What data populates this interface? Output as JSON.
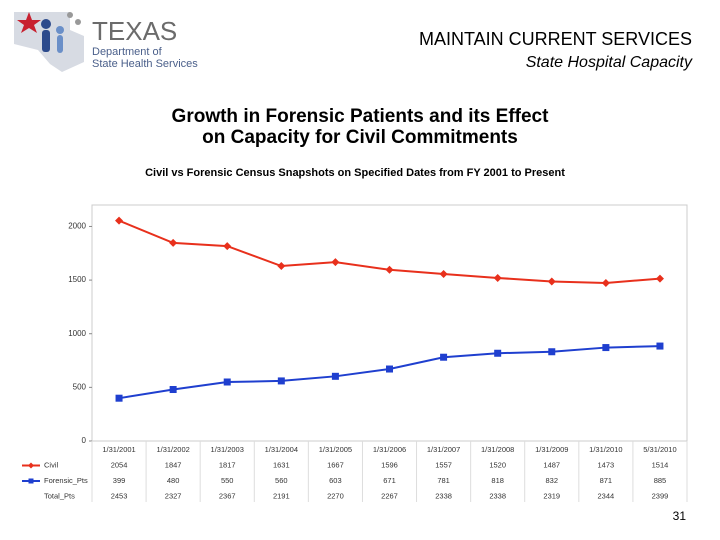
{
  "logo": {
    "name": "TEXAS",
    "line1": "Department of",
    "line2": "State Health Services"
  },
  "header": {
    "title": "MAINTAIN CURRENT SERVICES",
    "subtitle": "State Hospital Capacity"
  },
  "slide_title": [
    "Growth in Forensic Patients and its Effect",
    "on Capacity for Civil Commitments"
  ],
  "chart_data": {
    "type": "line",
    "title": "Civil vs Forensic Census Snapshots on Specified Dates from FY 2001 to Present",
    "categories": [
      "1/31/2001",
      "1/31/2002",
      "1/31/2003",
      "1/31/2004",
      "1/31/2005",
      "1/31/2006",
      "1/31/2007",
      "1/31/2008",
      "1/31/2009",
      "1/31/2010",
      "5/31/2010"
    ],
    "series": [
      {
        "name": "Civil",
        "color": "#e8301c",
        "marker": "diamond",
        "values": [
          2054,
          1847,
          1817,
          1631,
          1667,
          1596,
          1557,
          1520,
          1487,
          1473,
          1514
        ]
      },
      {
        "name": "Forensic_Pts",
        "color": "#1f3fcf",
        "marker": "square",
        "values": [
          399,
          480,
          550,
          560,
          603,
          671,
          781,
          818,
          832,
          871,
          885
        ]
      }
    ],
    "table_rows": [
      {
        "name": "Total_Pts",
        "values": [
          2453,
          2327,
          2367,
          2191,
          2270,
          2267,
          2338,
          2338,
          2319,
          2344,
          2399
        ]
      }
    ],
    "ylim": [
      0,
      2200
    ],
    "yticks": [
      0,
      500,
      1000,
      1500,
      2000
    ]
  },
  "page_number": "31"
}
